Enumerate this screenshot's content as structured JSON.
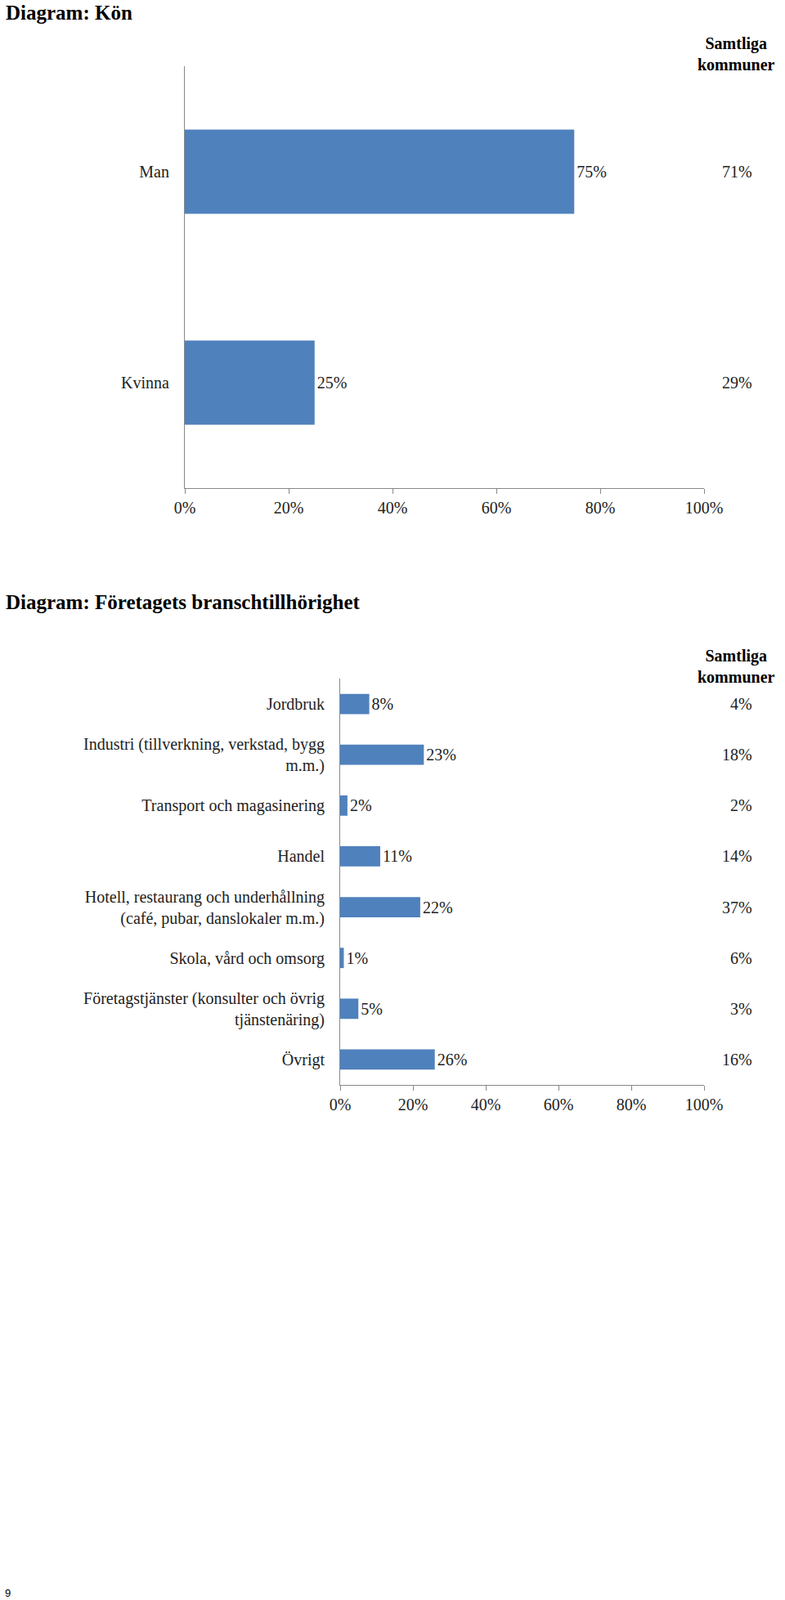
{
  "chart_data": [
    {
      "type": "bar",
      "title": "Diagram: Kön",
      "orientation": "horizontal",
      "categories": [
        "Man",
        "Kvinna"
      ],
      "values": [
        75,
        25
      ],
      "value_labels": [
        "75%",
        "25%"
      ],
      "data_labels": true,
      "color": "#4f81bd",
      "grid": false,
      "xlim": [
        0,
        100
      ],
      "xticks": [
        {
          "value": 0,
          "label": "0%"
        },
        {
          "value": 20,
          "label": "20%"
        },
        {
          "value": 40,
          "label": "40%"
        },
        {
          "value": 60,
          "label": "60%"
        },
        {
          "value": 80,
          "label": "80%"
        },
        {
          "value": 100,
          "label": "100%"
        }
      ],
      "comparison": {
        "title": "Samtliga kommuner",
        "values": [
          71,
          29
        ],
        "value_labels": [
          "71%",
          "29%"
        ]
      }
    },
    {
      "type": "bar",
      "title": "Diagram: Företagets branschtillhörighet",
      "orientation": "horizontal",
      "categories": [
        "Jordbruk",
        "Industri (tillverkning, verkstad, bygg m.m.)",
        "Transport och magasinering",
        "Handel",
        "Hotell, restaurang och underhållning (café, pubar, danslokaler m.m.)",
        "Skola, vård och omsorg",
        "Företagstjänster (konsulter och övrig tjänstenäring)",
        "Övrigt"
      ],
      "values": [
        8,
        23,
        2,
        11,
        22,
        1,
        5,
        26
      ],
      "value_labels": [
        "8%",
        "23%",
        "2%",
        "11%",
        "22%",
        "1%",
        "5%",
        "26%"
      ],
      "data_labels": true,
      "color": "#4f81bd",
      "grid": false,
      "xlim": [
        0,
        100
      ],
      "xticks": [
        {
          "value": 0,
          "label": "0%"
        },
        {
          "value": 20,
          "label": "20%"
        },
        {
          "value": 40,
          "label": "40%"
        },
        {
          "value": 60,
          "label": "60%"
        },
        {
          "value": 80,
          "label": "80%"
        },
        {
          "value": 100,
          "label": "100%"
        }
      ],
      "comparison": {
        "title": "Samtliga kommuner",
        "values": [
          4,
          18,
          2,
          14,
          37,
          6,
          3,
          16
        ],
        "value_labels": [
          "4%",
          "18%",
          "2%",
          "14%",
          "37%",
          "6%",
          "3%",
          "16%"
        ]
      }
    }
  ],
  "page": {
    "number": "9"
  }
}
